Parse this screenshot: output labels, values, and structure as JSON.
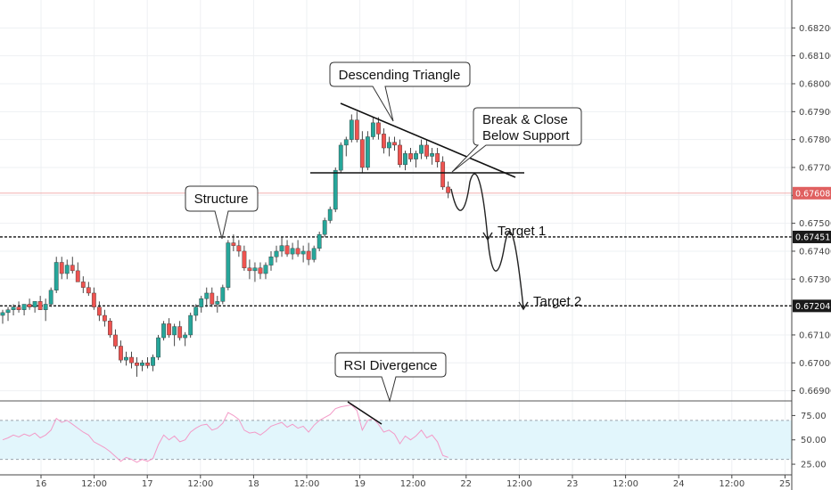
{
  "chart_data": [
    {
      "type": "candlestick",
      "x_labels": [
        "16",
        "12:00",
        "17",
        "12:00",
        "18",
        "12:00",
        "19",
        "12:00",
        "22",
        "12:00",
        "23",
        "12:00",
        "24",
        "12:00",
        "25"
      ],
      "y_ticks": [
        "0.68200",
        "0.68100",
        "0.68000",
        "0.67900",
        "0.67800",
        "0.67700",
        "0.67600",
        "0.67500",
        "0.67400",
        "0.67300",
        "0.67100",
        "0.67000",
        "0.66900"
      ],
      "ylim": [
        0.6687,
        0.683
      ],
      "last_price": "0.67608",
      "levels": [
        {
          "label": "Target 1",
          "price": "0.67451",
          "value": 0.67451
        },
        {
          "label": "Target 2",
          "price": "0.67204",
          "value": 0.67204
        }
      ],
      "annotations": [
        {
          "id": "descending-triangle",
          "text": [
            "Descending Triangle"
          ]
        },
        {
          "id": "break-close",
          "text": [
            "Break & Close",
            "Below Support"
          ]
        },
        {
          "id": "structure",
          "text": [
            "Structure"
          ]
        },
        {
          "id": "rsi-divergence",
          "text": [
            "RSI Divergence"
          ]
        }
      ],
      "candles": [
        [
          0.6717,
          0.6719,
          0.6714,
          0.6718
        ],
        [
          0.6718,
          0.672,
          0.6715,
          0.6719
        ],
        [
          0.6719,
          0.6721,
          0.6717,
          0.672
        ],
        [
          0.672,
          0.6722,
          0.6718,
          0.6719
        ],
        [
          0.6719,
          0.6721,
          0.6717,
          0.6721
        ],
        [
          0.6721,
          0.6723,
          0.6719,
          0.672
        ],
        [
          0.672,
          0.6722,
          0.6718,
          0.6722
        ],
        [
          0.6722,
          0.6724,
          0.6719,
          0.6719
        ],
        [
          0.6719,
          0.6723,
          0.6715,
          0.6721
        ],
        [
          0.6721,
          0.6727,
          0.672,
          0.6726
        ],
        [
          0.6726,
          0.6738,
          0.6725,
          0.6736
        ],
        [
          0.6736,
          0.6738,
          0.673,
          0.6732
        ],
        [
          0.6732,
          0.6737,
          0.673,
          0.6735
        ],
        [
          0.6735,
          0.6738,
          0.6732,
          0.6733
        ],
        [
          0.6733,
          0.6736,
          0.6729,
          0.6729
        ],
        [
          0.6729,
          0.6731,
          0.6725,
          0.6727
        ],
        [
          0.6727,
          0.6729,
          0.6724,
          0.6725
        ],
        [
          0.6725,
          0.6727,
          0.6719,
          0.672
        ],
        [
          0.672,
          0.6722,
          0.6715,
          0.6717
        ],
        [
          0.6717,
          0.6719,
          0.6713,
          0.6715
        ],
        [
          0.6715,
          0.6716,
          0.6709,
          0.671
        ],
        [
          0.671,
          0.6712,
          0.6705,
          0.6706
        ],
        [
          0.6706,
          0.6708,
          0.67,
          0.6701
        ],
        [
          0.6701,
          0.6704,
          0.6699,
          0.6702
        ],
        [
          0.6702,
          0.6704,
          0.6698,
          0.67
        ],
        [
          0.67,
          0.6702,
          0.6695,
          0.6699
        ],
        [
          0.6699,
          0.6701,
          0.6697,
          0.67
        ],
        [
          0.67,
          0.6702,
          0.6698,
          0.6699
        ],
        [
          0.6699,
          0.6703,
          0.6697,
          0.6702
        ],
        [
          0.6702,
          0.671,
          0.6701,
          0.6709
        ],
        [
          0.6709,
          0.6715,
          0.6708,
          0.6714
        ],
        [
          0.6714,
          0.6716,
          0.6709,
          0.671
        ],
        [
          0.671,
          0.6714,
          0.6706,
          0.6713
        ],
        [
          0.6713,
          0.6715,
          0.6708,
          0.6709
        ],
        [
          0.6709,
          0.6711,
          0.6706,
          0.671
        ],
        [
          0.671,
          0.6718,
          0.6709,
          0.6717
        ],
        [
          0.6717,
          0.6721,
          0.6715,
          0.672
        ],
        [
          0.672,
          0.6724,
          0.6718,
          0.6723
        ],
        [
          0.6723,
          0.6727,
          0.672,
          0.6725
        ],
        [
          0.6725,
          0.6727,
          0.672,
          0.6721
        ],
        [
          0.6721,
          0.6724,
          0.6718,
          0.6722
        ],
        [
          0.6722,
          0.6728,
          0.6721,
          0.6727
        ],
        [
          0.6727,
          0.6744,
          0.6726,
          0.6743
        ],
        [
          0.6743,
          0.6746,
          0.674,
          0.6742
        ],
        [
          0.6742,
          0.6744,
          0.6738,
          0.674
        ],
        [
          0.674,
          0.6742,
          0.6733,
          0.6734
        ],
        [
          0.6734,
          0.6737,
          0.673,
          0.6733
        ],
        [
          0.6733,
          0.6736,
          0.6729,
          0.6734
        ],
        [
          0.6734,
          0.6736,
          0.673,
          0.6732
        ],
        [
          0.6732,
          0.6736,
          0.673,
          0.6735
        ],
        [
          0.6735,
          0.674,
          0.6733,
          0.6738
        ],
        [
          0.6738,
          0.6742,
          0.6736,
          0.674
        ],
        [
          0.674,
          0.6745,
          0.6738,
          0.6742
        ],
        [
          0.6742,
          0.6744,
          0.6738,
          0.6739
        ],
        [
          0.6739,
          0.6743,
          0.6737,
          0.6741
        ],
        [
          0.6741,
          0.6744,
          0.6738,
          0.6739
        ],
        [
          0.6739,
          0.6742,
          0.6736,
          0.674
        ],
        [
          0.674,
          0.6743,
          0.6735,
          0.6737
        ],
        [
          0.6737,
          0.6742,
          0.6736,
          0.6741
        ],
        [
          0.6741,
          0.6747,
          0.674,
          0.6746
        ],
        [
          0.6746,
          0.6752,
          0.6745,
          0.6751
        ],
        [
          0.6751,
          0.6756,
          0.675,
          0.6755
        ],
        [
          0.6755,
          0.677,
          0.6754,
          0.6769
        ],
        [
          0.6769,
          0.6779,
          0.6768,
          0.6778
        ],
        [
          0.6778,
          0.6781,
          0.6774,
          0.678
        ],
        [
          0.678,
          0.6789,
          0.6779,
          0.6787
        ],
        [
          0.6787,
          0.679,
          0.6779,
          0.678
        ],
        [
          0.678,
          0.6783,
          0.6768,
          0.677
        ],
        [
          0.677,
          0.6783,
          0.6769,
          0.6781
        ],
        [
          0.6781,
          0.6788,
          0.678,
          0.6786
        ],
        [
          0.6786,
          0.6788,
          0.678,
          0.6782
        ],
        [
          0.6782,
          0.6784,
          0.6775,
          0.6777
        ],
        [
          0.6777,
          0.6781,
          0.6774,
          0.6779
        ],
        [
          0.6779,
          0.6781,
          0.6776,
          0.6778
        ],
        [
          0.6778,
          0.678,
          0.677,
          0.6771
        ],
        [
          0.6771,
          0.6776,
          0.6769,
          0.6775
        ],
        [
          0.6775,
          0.6777,
          0.6772,
          0.6773
        ],
        [
          0.6773,
          0.6776,
          0.677,
          0.6775
        ],
        [
          0.6775,
          0.678,
          0.6773,
          0.6778
        ],
        [
          0.6778,
          0.678,
          0.6773,
          0.6774
        ],
        [
          0.6774,
          0.6777,
          0.6771,
          0.6775
        ],
        [
          0.6775,
          0.6777,
          0.677,
          0.6772
        ],
        [
          0.6772,
          0.6774,
          0.6762,
          0.6763
        ],
        [
          0.6763,
          0.6765,
          0.6759,
          0.6761
        ]
      ],
      "rsi": {
        "ticks": [
          "75.00",
          "50.00",
          "25.00"
        ],
        "ylim": [
          15,
          90
        ],
        "bands": [
          30,
          70
        ],
        "values": [
          50,
          52,
          55,
          53,
          56,
          54,
          57,
          52,
          55,
          60,
          72,
          68,
          70,
          66,
          62,
          58,
          55,
          48,
          45,
          42,
          38,
          33,
          28,
          32,
          30,
          27,
          30,
          28,
          31,
          45,
          55,
          50,
          54,
          48,
          50,
          58,
          62,
          65,
          66,
          60,
          62,
          67,
          78,
          75,
          71,
          60,
          57,
          58,
          55,
          59,
          64,
          66,
          68,
          63,
          66,
          62,
          64,
          58,
          65,
          70,
          73,
          76,
          82,
          84,
          85,
          86,
          80,
          60,
          70,
          72,
          66,
          58,
          60,
          56,
          46,
          54,
          50,
          54,
          60,
          52,
          55,
          48,
          34,
          32
        ]
      },
      "colors": {
        "up": "#26a69a",
        "down": "#ef5350",
        "rsi": "#f39ac7",
        "rsi_band": "#e2f6fc",
        "price_line": "#f0a4a4",
        "last_badge": "#e06060"
      }
    }
  ]
}
